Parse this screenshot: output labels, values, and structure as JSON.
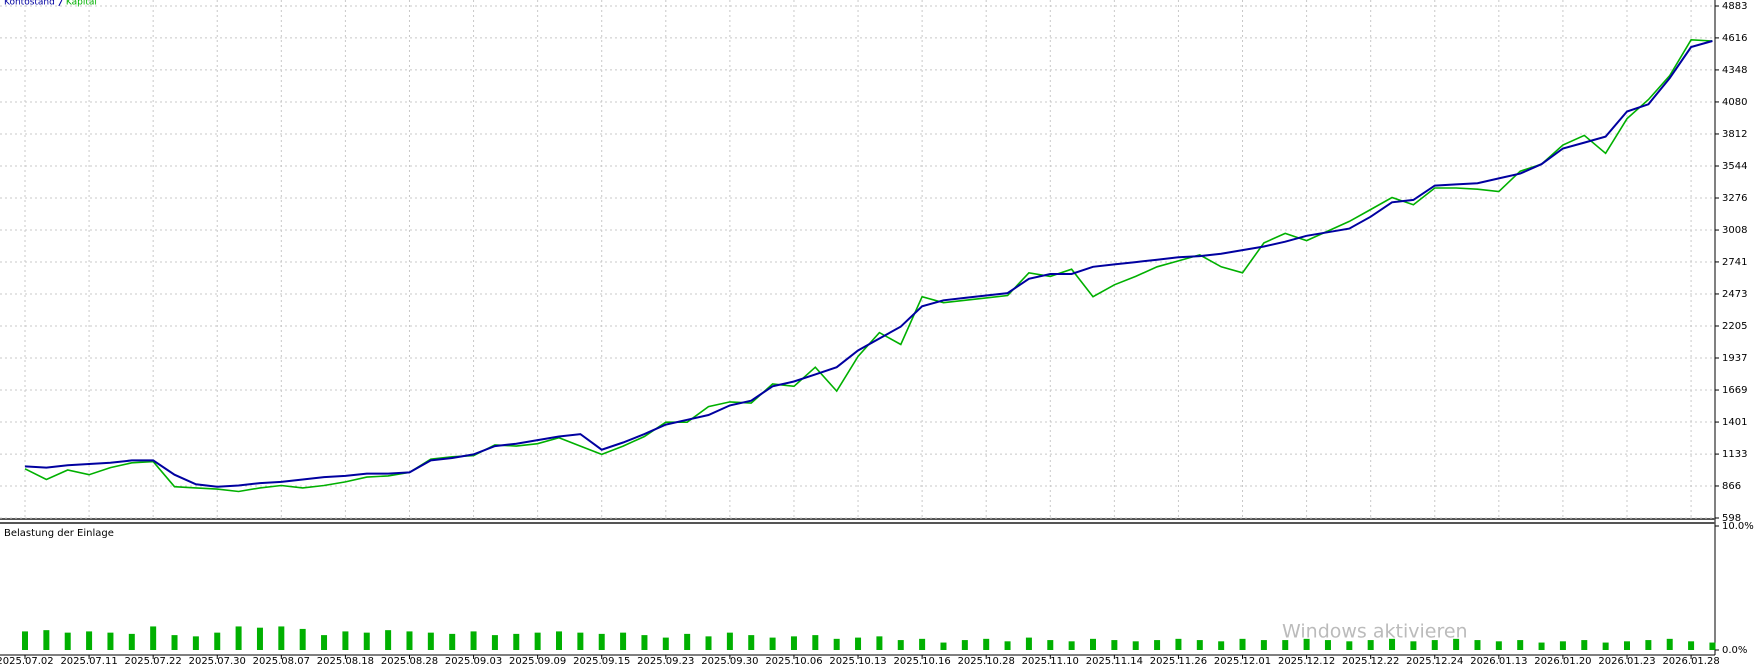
{
  "chart_data": [
    {
      "type": "line",
      "categories": [
        "2025.07.02",
        null,
        null,
        "2025.07.11",
        null,
        null,
        "2025.07.22",
        null,
        null,
        "2025.07.30",
        null,
        null,
        "2025.08.07",
        null,
        null,
        "2025.08.18",
        null,
        null,
        "2025.08.28",
        null,
        null,
        "2025.09.03",
        null,
        null,
        "2025.09.09",
        null,
        null,
        "2025.09.15",
        null,
        null,
        "2025.09.23",
        null,
        null,
        "2025.09.30",
        null,
        null,
        "2025.10.06",
        null,
        null,
        "2025.10.13",
        null,
        null,
        "2025.10.16",
        null,
        null,
        "2025.10.28",
        null,
        null,
        "2025.11.10",
        null,
        null,
        "2025.11.14",
        null,
        null,
        "2025.11.26",
        null,
        null,
        "2025.12.01",
        null,
        null,
        "2025.12.12",
        null,
        null,
        "2025.12.22",
        null,
        null,
        "2025.12.24",
        null,
        null,
        "2026.01.13",
        null,
        null,
        "2026.01.20",
        null,
        null,
        "2026.01.23",
        null,
        null,
        "2026.01.28",
        null
      ],
      "series": [
        {
          "name": "Kontostand",
          "color": "#0000a0",
          "values": [
            1030,
            1020,
            1040,
            1050,
            1060,
            1080,
            1080,
            960,
            880,
            860,
            870,
            890,
            900,
            920,
            940,
            950,
            970,
            970,
            980,
            1080,
            1100,
            1130,
            1200,
            1220,
            1250,
            1280,
            1300,
            1170,
            1230,
            1300,
            1380,
            1420,
            1460,
            1540,
            1580,
            1700,
            1740,
            1800,
            1860,
            2000,
            2100,
            2200,
            2370,
            2420,
            2440,
            2460,
            2480,
            2600,
            2640,
            2640,
            2700,
            2720,
            2740,
            2760,
            2780,
            2790,
            2810,
            2840,
            2870,
            2910,
            2960,
            2990,
            3020,
            3120,
            3240,
            3260,
            3380,
            3390,
            3400,
            3440,
            3480,
            3560,
            3690,
            3740,
            3790,
            4000,
            4060,
            4280,
            4540,
            4590
          ]
        },
        {
          "name": "Kapital",
          "color": "#00b000",
          "values": [
            1010,
            920,
            1000,
            960,
            1020,
            1060,
            1070,
            860,
            850,
            840,
            820,
            850,
            870,
            850,
            870,
            900,
            940,
            950,
            980,
            1090,
            1110,
            1120,
            1210,
            1200,
            1220,
            1270,
            1200,
            1130,
            1200,
            1280,
            1400,
            1400,
            1530,
            1570,
            1560,
            1720,
            1700,
            1860,
            1660,
            1950,
            2150,
            2050,
            2450,
            2400,
            2420,
            2440,
            2460,
            2650,
            2620,
            2680,
            2450,
            2550,
            2620,
            2700,
            2750,
            2800,
            2700,
            2650,
            2900,
            2980,
            2920,
            3000,
            3080,
            3180,
            3280,
            3220,
            3360,
            3360,
            3350,
            3330,
            3500,
            3560,
            3720,
            3800,
            3650,
            3940,
            4100,
            4300,
            4600,
            4590
          ]
        }
      ],
      "ylim": [
        598,
        4883
      ],
      "yticks": [
        4883,
        4616,
        4348,
        4080,
        3812,
        3544,
        3276,
        3008,
        2741,
        2473,
        2205,
        1937,
        1669,
        1401,
        1133,
        866,
        598
      ],
      "grid": true
    },
    {
      "type": "bar",
      "title": "Belastung der Einlage",
      "color": "#00b000",
      "values": [
        1.5,
        1.6,
        1.4,
        1.5,
        1.4,
        1.3,
        1.9,
        1.2,
        1.1,
        1.4,
        1.9,
        1.8,
        1.9,
        1.7,
        1.2,
        1.5,
        1.4,
        1.6,
        1.5,
        1.4,
        1.3,
        1.5,
        1.2,
        1.3,
        1.4,
        1.5,
        1.4,
        1.3,
        1.4,
        1.2,
        1.0,
        1.3,
        1.1,
        1.4,
        1.2,
        1.0,
        1.1,
        1.2,
        0.9,
        1.0,
        1.1,
        0.8,
        0.9,
        0.6,
        0.8,
        0.9,
        0.7,
        1.0,
        0.8,
        0.7,
        0.9,
        0.8,
        0.7,
        0.8,
        0.9,
        0.8,
        0.7,
        0.9,
        0.8,
        0.8,
        0.9,
        0.8,
        0.7,
        0.8,
        0.9,
        0.7,
        0.8,
        0.9,
        0.8,
        0.7,
        0.8,
        0.6,
        0.7,
        0.8,
        0.6,
        0.7,
        0.8,
        0.9,
        0.7,
        0.6
      ],
      "ylim": [
        0,
        10
      ],
      "yticks": [
        {
          "value": 10,
          "label": "10.0%"
        },
        {
          "value": 0,
          "label": "0.0%"
        }
      ]
    }
  ],
  "watermark": "Windows aktivieren"
}
